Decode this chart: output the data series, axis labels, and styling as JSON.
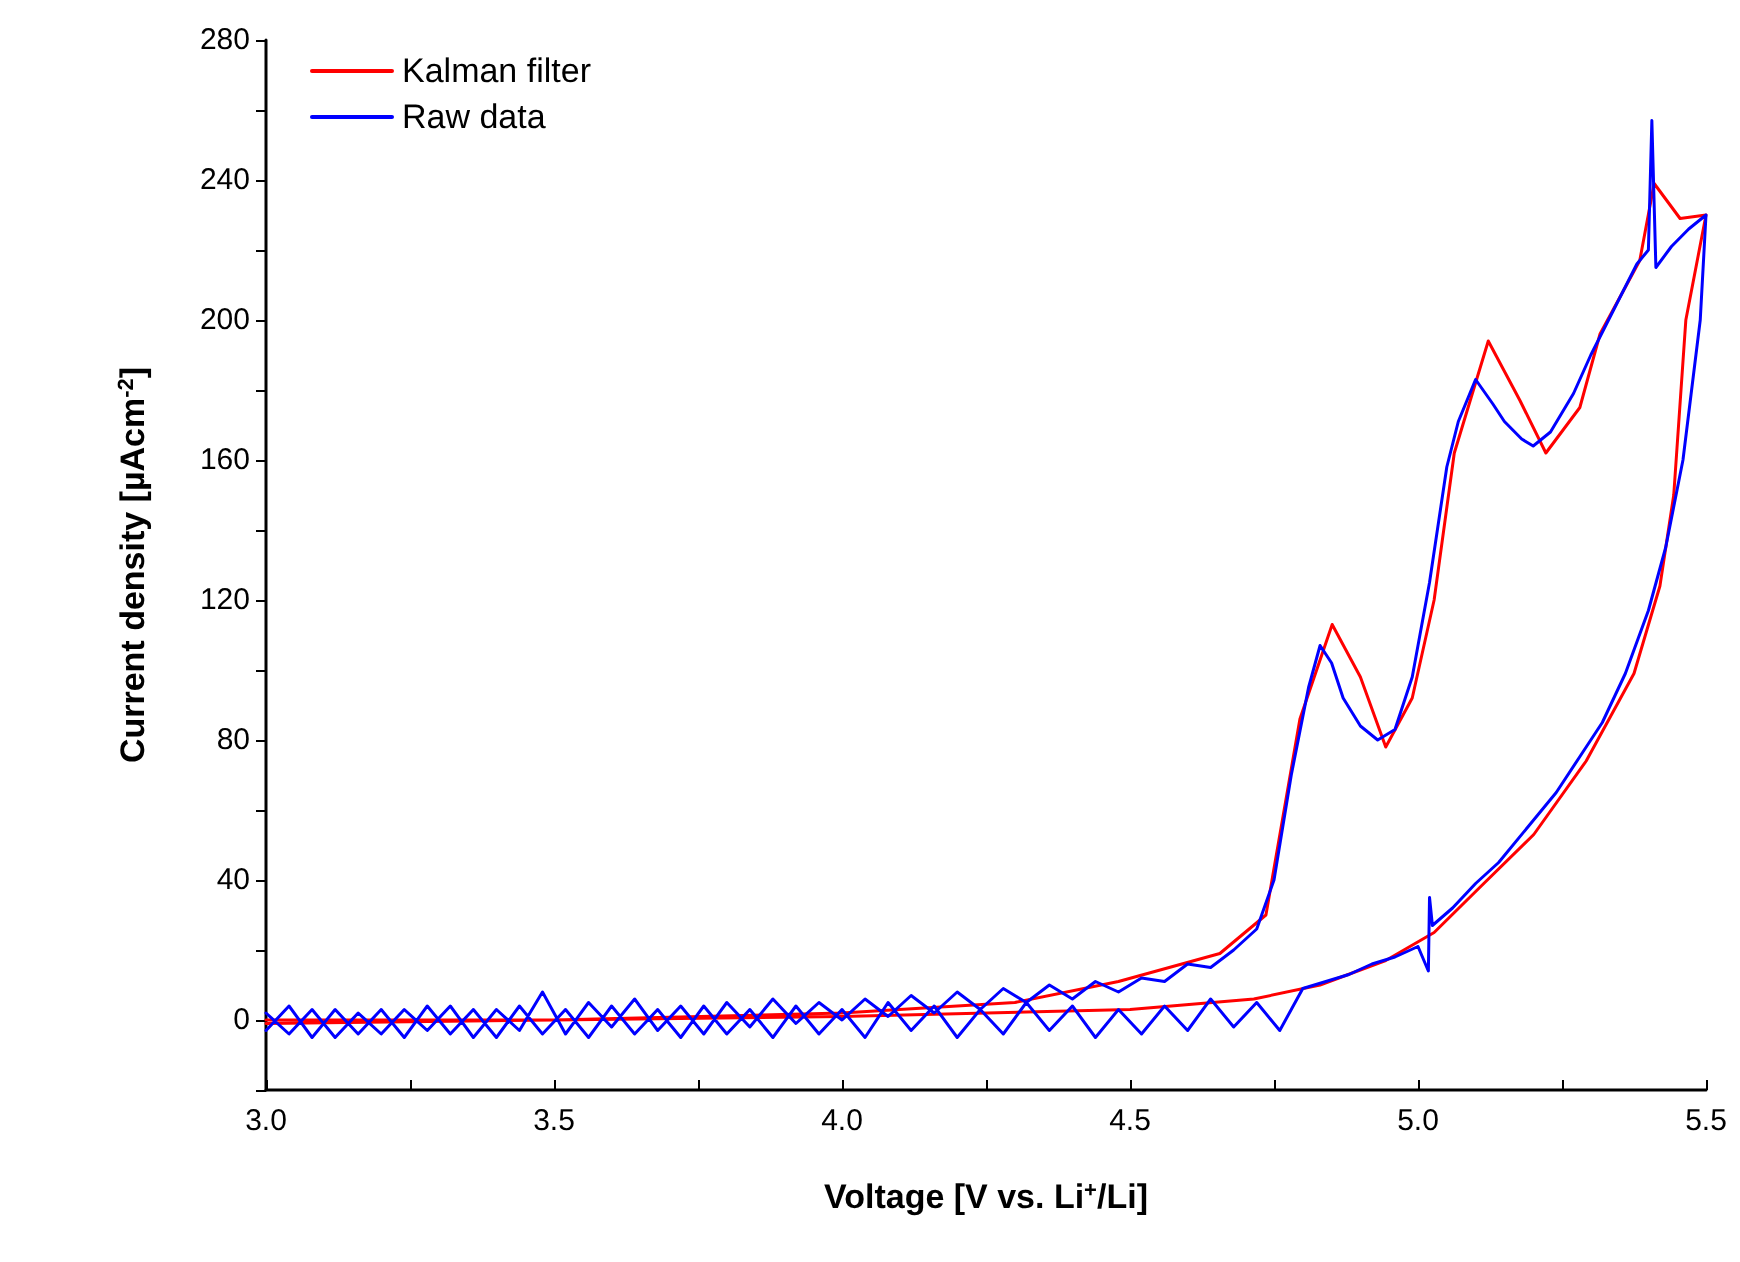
{
  "chart_data": {
    "type": "line",
    "xlabel": "Voltage [V vs. Li$^{+}$/Li]",
    "ylabel": "Current density [µAcm$^{-2}$]",
    "xlim": [
      3.0,
      5.5
    ],
    "xticks": [
      {
        "value": 3.0,
        "label": "3.0"
      },
      {
        "value": 3.25,
        "label": null
      },
      {
        "value": 3.5,
        "label": "3.5"
      },
      {
        "value": 3.75,
        "label": null
      },
      {
        "value": 4.0,
        "label": "4.0"
      },
      {
        "value": 4.25,
        "label": null
      },
      {
        "value": 4.5,
        "label": "4.5"
      },
      {
        "value": 4.75,
        "label": null
      },
      {
        "value": 5.0,
        "label": "5.0"
      },
      {
        "value": 5.25,
        "label": null
      },
      {
        "value": 5.5,
        "label": "5.5"
      }
    ],
    "ylim": [
      -20,
      280
    ],
    "yticks": [
      {
        "value": -20,
        "label": null
      },
      0,
      {
        "value": 20,
        "label": null
      },
      40,
      {
        "value": 60,
        "label": null
      },
      80,
      {
        "value": 100,
        "label": null
      },
      120,
      {
        "value": 140,
        "label": null
      },
      160,
      {
        "value": 180,
        "label": null
      },
      200,
      {
        "value": 220,
        "label": null
      },
      240,
      {
        "value": 260,
        "label": null
      },
      280
    ],
    "legend": "top left",
    "grid": false,
    "marker": "none",
    "line_style": "solid",
    "series": [
      {
        "name": "Kalman filter",
        "color": "#ff0000",
        "x": [
          3.0,
          3.5,
          4.0,
          4.3,
          4.48,
          4.656,
          4.736,
          4.795,
          4.851,
          4.9,
          4.944,
          4.99,
          5.028,
          5.063,
          5.122,
          5.177,
          5.222,
          5.281,
          5.316,
          5.385,
          5.41,
          5.455,
          5.5,
          5.465,
          5.444,
          5.42,
          5.375,
          5.292,
          5.201,
          5.108,
          5.028,
          4.944,
          4.83,
          4.715,
          4.5,
          4.0,
          3.5,
          3.0
        ],
        "values": [
          0,
          0,
          2,
          5,
          11,
          19,
          30,
          86,
          113,
          98,
          78,
          92,
          120,
          162,
          194,
          177,
          162,
          175,
          196,
          217,
          239,
          229,
          230,
          200,
          150,
          124,
          99,
          74,
          53,
          38,
          25,
          17,
          10,
          6,
          3,
          1,
          0,
          -1
        ]
      },
      {
        "name": "Raw data",
        "color": "#0000ff",
        "x": [
          3.0,
          3.04,
          3.08,
          3.12,
          3.16,
          3.2,
          3.24,
          3.28,
          3.32,
          3.36,
          3.4,
          3.44,
          3.48,
          3.52,
          3.56,
          3.6,
          3.64,
          3.68,
          3.72,
          3.76,
          3.8,
          3.84,
          3.88,
          3.92,
          3.96,
          4.0,
          4.04,
          4.08,
          4.12,
          4.16,
          4.2,
          4.24,
          4.28,
          4.32,
          4.36,
          4.4,
          4.44,
          4.48,
          4.52,
          4.56,
          4.6,
          4.64,
          4.68,
          4.72,
          4.75,
          4.78,
          4.81,
          4.83,
          4.85,
          4.87,
          4.9,
          4.93,
          4.96,
          4.99,
          5.02,
          5.05,
          5.07,
          5.1,
          5.13,
          5.15,
          5.18,
          5.2,
          5.23,
          5.27,
          5.3,
          5.34,
          5.38,
          5.4,
          5.406,
          5.413,
          5.44,
          5.47,
          5.5,
          5.49,
          5.46,
          5.43,
          5.4,
          5.36,
          5.32,
          5.28,
          5.24,
          5.19,
          5.14,
          5.1,
          5.06,
          5.025,
          5.02,
          5.018,
          5.0,
          4.96,
          4.92,
          4.88,
          4.84,
          4.8,
          4.78,
          4.76,
          4.72,
          4.68,
          4.64,
          4.6,
          4.56,
          4.52,
          4.48,
          4.44,
          4.4,
          4.36,
          4.32,
          4.28,
          4.24,
          4.2,
          4.16,
          4.12,
          4.08,
          4.04,
          4.0,
          3.96,
          3.92,
          3.88,
          3.84,
          3.8,
          3.76,
          3.72,
          3.68,
          3.64,
          3.6,
          3.56,
          3.52,
          3.48,
          3.44,
          3.4,
          3.36,
          3.32,
          3.28,
          3.24,
          3.2,
          3.16,
          3.12,
          3.08,
          3.04,
          3.0
        ],
        "values": [
          2,
          -4,
          3,
          -5,
          2,
          -4,
          3,
          -3,
          4,
          -5,
          3,
          -3,
          8,
          -4,
          5,
          -2,
          6,
          -3,
          4,
          -4,
          5,
          -2,
          6,
          -1,
          5,
          0,
          6,
          1,
          7,
          2,
          8,
          3,
          9,
          5,
          10,
          6,
          11,
          8,
          12,
          11,
          16,
          15,
          20,
          26,
          40,
          70,
          95,
          107,
          102,
          92,
          84,
          80,
          83,
          98,
          125,
          158,
          171,
          183,
          176,
          171,
          166,
          164,
          168,
          179,
          190,
          203,
          216,
          220,
          257,
          215,
          221,
          226,
          230,
          200,
          160,
          135,
          117,
          99,
          85,
          75,
          65,
          55,
          45,
          39,
          32,
          27,
          35,
          14,
          21,
          18,
          16,
          13,
          11,
          9,
          3,
          -3,
          5,
          -2,
          6,
          -3,
          4,
          -4,
          3,
          -5,
          4,
          -3,
          5,
          -4,
          3,
          -5,
          4,
          -3,
          5,
          -5,
          3,
          -4,
          4,
          -5,
          3,
          -4,
          4,
          -5,
          3,
          -4,
          4,
          -5,
          3,
          -4,
          4,
          -5,
          3,
          -4,
          4,
          -5,
          3,
          -4,
          3,
          -5,
          4,
          -3
        ]
      }
    ]
  }
}
